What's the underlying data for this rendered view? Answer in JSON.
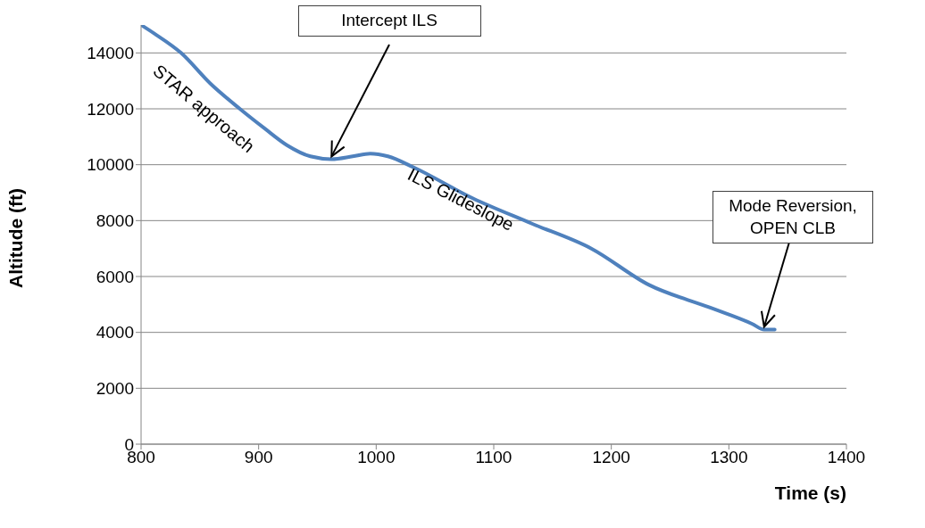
{
  "chart_data": {
    "type": "line",
    "xlabel": "Time (s)",
    "ylabel": "Altitude (ft)",
    "xlim": [
      800,
      1400
    ],
    "xticks": [
      800,
      900,
      1000,
      1100,
      1200,
      1300,
      1400
    ],
    "ylim": [
      0,
      15000
    ],
    "yticks": [
      0,
      2000,
      4000,
      6000,
      8000,
      10000,
      12000,
      14000
    ],
    "grid": "y",
    "marker": "none",
    "line_style": "solid",
    "series": [
      {
        "color": "#4f81bd",
        "x": [
          800,
          811,
          834,
          859,
          884,
          905,
          924,
          944,
          962,
          980,
          995,
          1010,
          1032,
          1082,
          1132,
          1183,
          1232,
          1283,
          1320,
          1330,
          1339
        ],
        "values": [
          15000,
          14700,
          14000,
          12900,
          12000,
          11300,
          10700,
          10300,
          10200,
          10300,
          10400,
          10300,
          9900,
          8800,
          7900,
          7000,
          5700,
          4900,
          4300,
          4100,
          4100
        ]
      }
    ],
    "annotations": [
      {
        "text": "STAR approach",
        "x": 870,
        "y": 12450
      },
      {
        "text": "Intercept ILS",
        "x": 962,
        "y": 10200
      },
      {
        "text": "ILS Glideslope",
        "x": 1060,
        "y": 9250
      },
      {
        "text": "Mode Reversion, OPEN CLB",
        "x": 1330,
        "y": 4100
      }
    ]
  }
}
